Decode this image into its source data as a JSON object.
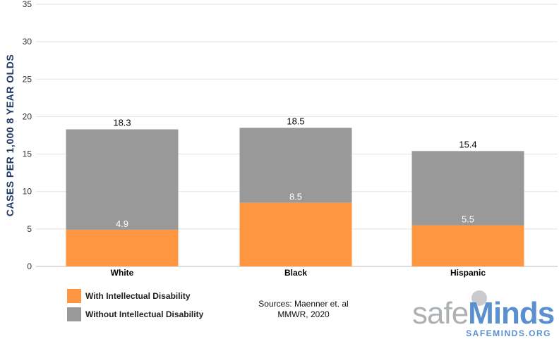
{
  "chart_data": {
    "type": "bar",
    "stacked": true,
    "title": "",
    "xlabel": "",
    "ylabel": "CASES PER 1,000 8 YEAR OLDS",
    "ylim": [
      0,
      35
    ],
    "yticks": [
      0,
      5,
      10,
      15,
      20,
      25,
      30,
      35
    ],
    "grid": true,
    "legend_position": "bottom-left",
    "categories": [
      "White",
      "Black",
      "Hispanic"
    ],
    "totals": [
      18.3,
      18.5,
      15.4
    ],
    "totals_labels": [
      "18.3",
      "18.5",
      "15.4"
    ],
    "series": [
      {
        "name": "With Intellectual Disability",
        "values": [
          4.9,
          8.5,
          5.5
        ],
        "labels": [
          "4.9",
          "8.5",
          "5.5"
        ],
        "color": "#ff9642"
      },
      {
        "name": "Without Intellectual Disability",
        "values": [
          13.4,
          10.0,
          9.9
        ],
        "color": "#999999"
      }
    ]
  },
  "footer": {
    "sources_line1": "Sources: Maenner et. al",
    "sources_line2": "MMWR, 2020"
  },
  "logo": {
    "text_safe": "safe",
    "text_minds": "Minds",
    "url": "SAFEMINDS.ORG",
    "accent": "#5a8fd0"
  }
}
